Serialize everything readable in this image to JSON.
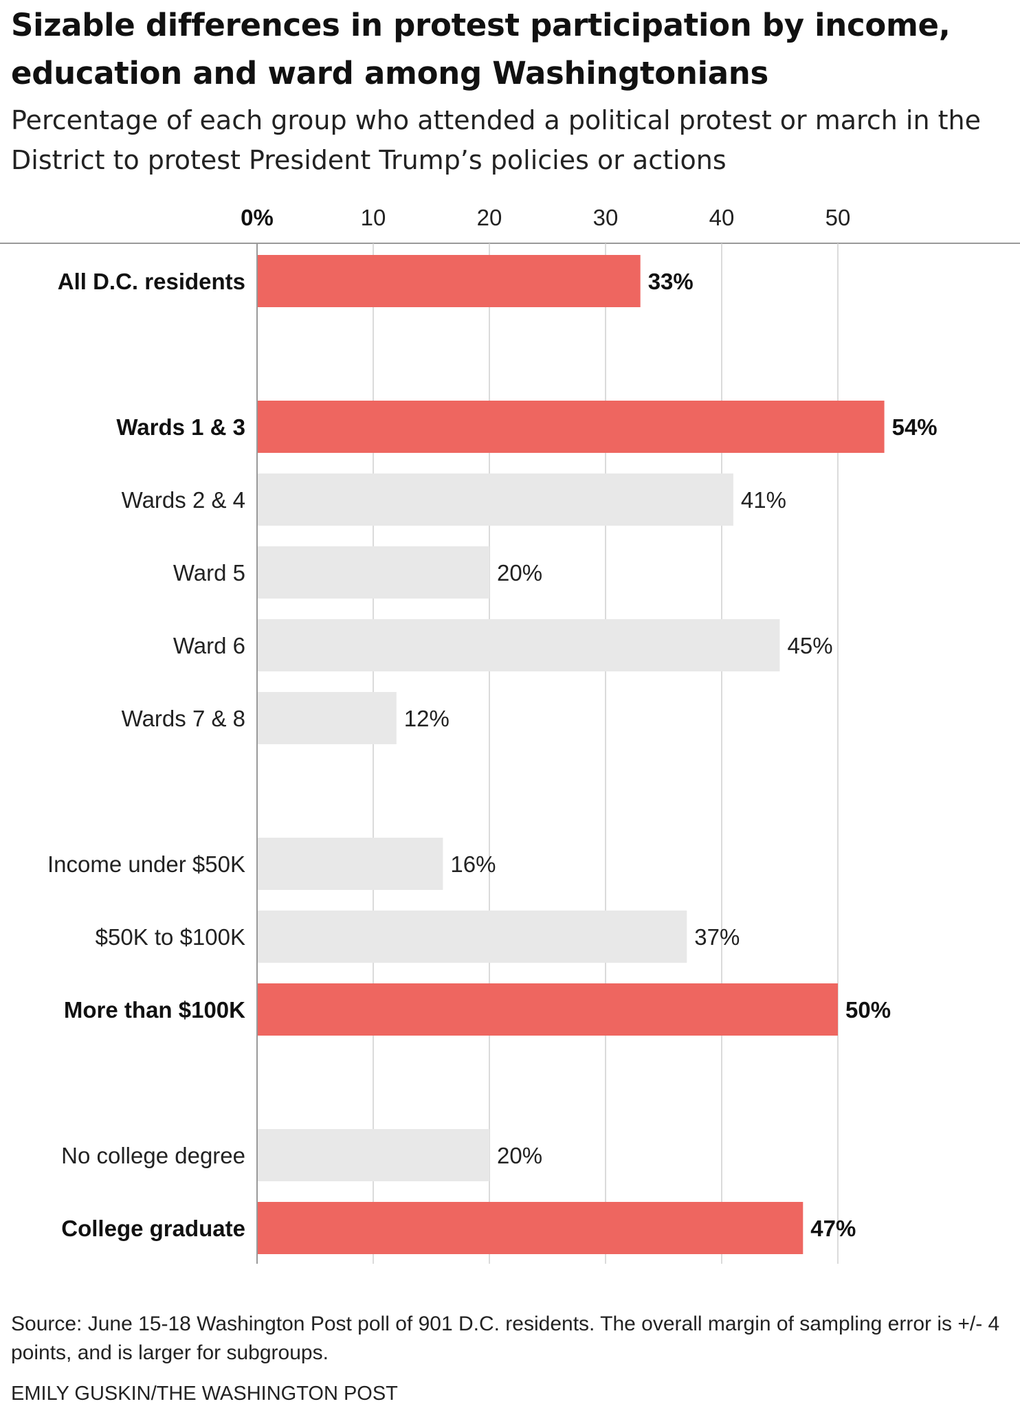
{
  "header": {
    "title": "Sizable differences in protest participation by income, education and ward among Washingtonians",
    "subtitle": "Percentage of each group who attended a political protest or march in the District to protest President Trump’s policies or actions"
  },
  "footer": {
    "source": "Source: June 15-18 Washington Post poll of 901 D.C. residents. The overall margin of sampling error is +/- 4 points, and is larger for subgroups.",
    "credit": "EMILY GUSKIN/THE WASHINGTON POST"
  },
  "colors": {
    "highlight": "#ee6660",
    "neutral": "#e8e8e8",
    "grid": "#cfcfcf",
    "axis": "#999999"
  },
  "chart_data": {
    "type": "bar",
    "orientation": "horizontal",
    "title": "Sizable differences in protest participation by income, education and ward among Washingtonians",
    "subtitle": "Percentage of each group who attended a political protest or march in the District to protest President Trump’s policies or actions",
    "xlim": [
      0,
      58
    ],
    "xticks": [
      0,
      10,
      20,
      30,
      40,
      50
    ],
    "xtick_labels": [
      "0%",
      "10",
      "20",
      "30",
      "40",
      "50"
    ],
    "grid": true,
    "groups": [
      {
        "bars": [
          {
            "label": "All D.C. residents",
            "value": 33,
            "value_label": "33%",
            "highlight": true
          }
        ]
      },
      {
        "bars": [
          {
            "label": "Wards 1 & 3",
            "value": 54,
            "value_label": "54%",
            "highlight": true
          },
          {
            "label": "Wards 2 & 4",
            "value": 41,
            "value_label": "41%",
            "highlight": false
          },
          {
            "label": "Ward 5",
            "value": 20,
            "value_label": "20%",
            "highlight": false
          },
          {
            "label": "Ward 6",
            "value": 45,
            "value_label": "45%",
            "highlight": false
          },
          {
            "label": "Wards 7 & 8",
            "value": 12,
            "value_label": "12%",
            "highlight": false
          }
        ]
      },
      {
        "bars": [
          {
            "label": "Income under $50K",
            "value": 16,
            "value_label": "16%",
            "highlight": false
          },
          {
            "label": "$50K to $100K",
            "value": 37,
            "value_label": "37%",
            "highlight": false
          },
          {
            "label": "More than $100K",
            "value": 50,
            "value_label": "50%",
            "highlight": true
          }
        ]
      },
      {
        "bars": [
          {
            "label": "No college degree",
            "value": 20,
            "value_label": "20%",
            "highlight": false
          },
          {
            "label": "College graduate",
            "value": 47,
            "value_label": "47%",
            "highlight": true
          }
        ]
      }
    ]
  }
}
